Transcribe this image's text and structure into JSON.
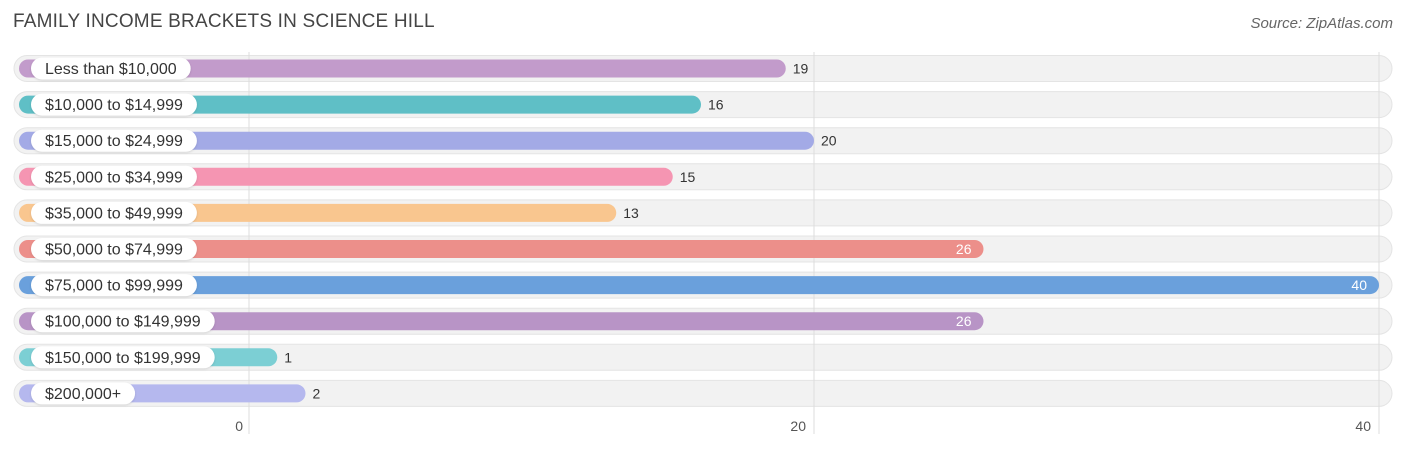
{
  "header": {
    "title": "FAMILY INCOME BRACKETS IN SCIENCE HILL",
    "source": "Source: ZipAtlas.com"
  },
  "chart_data": {
    "type": "bar",
    "orientation": "horizontal",
    "title": "FAMILY INCOME BRACKETS IN SCIENCE HILL",
    "categories": [
      "Less than $10,000",
      "$10,000 to $14,999",
      "$15,000 to $24,999",
      "$25,000 to $34,999",
      "$35,000 to $49,999",
      "$50,000 to $74,999",
      "$75,000 to $99,999",
      "$100,000 to $149,999",
      "$150,000 to $199,999",
      "$200,000+"
    ],
    "values": [
      19,
      16,
      20,
      15,
      13,
      26,
      40,
      26,
      1,
      2
    ],
    "colors": [
      "#c29bcb",
      "#5fbfc6",
      "#a3aae6",
      "#f595b2",
      "#f9c68f",
      "#ec8f8a",
      "#6aa0dc",
      "#b894c6",
      "#7ccfd4",
      "#b5b8ee"
    ],
    "xlim": [
      0,
      40
    ],
    "xticks": [
      0,
      20,
      40
    ],
    "grid": true,
    "xlabel": "",
    "ylabel": ""
  }
}
